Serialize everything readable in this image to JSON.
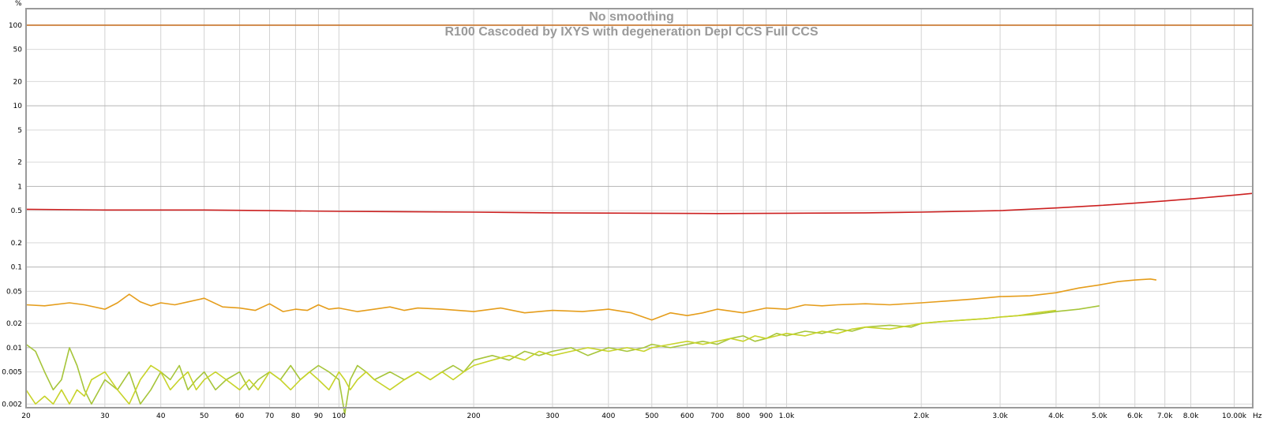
{
  "chart_data": {
    "type": "line",
    "title": "No smoothing",
    "subtitle": "R100 Cascoded by IXYS with degeneration Depl CCS Full CCS",
    "y_unit": "%",
    "x_unit": "Hz",
    "x_scale": "log",
    "y_scale": "log",
    "xlim": [
      20,
      11000
    ],
    "ylim": [
      0.0018,
      160
    ],
    "grid": true,
    "legend": "none",
    "x_ticks": [
      {
        "v": 20,
        "label": "20"
      },
      {
        "v": 30,
        "label": "30"
      },
      {
        "v": 40,
        "label": "40"
      },
      {
        "v": 50,
        "label": "50"
      },
      {
        "v": 60,
        "label": "60"
      },
      {
        "v": 70,
        "label": "70"
      },
      {
        "v": 80,
        "label": "80"
      },
      {
        "v": 90,
        "label": "90"
      },
      {
        "v": 100,
        "label": "100"
      },
      {
        "v": 200,
        "label": "200"
      },
      {
        "v": 300,
        "label": "300"
      },
      {
        "v": 400,
        "label": "400"
      },
      {
        "v": 500,
        "label": "500"
      },
      {
        "v": 600,
        "label": "600"
      },
      {
        "v": 700,
        "label": "700"
      },
      {
        "v": 800,
        "label": "800"
      },
      {
        "v": 900,
        "label": "900"
      },
      {
        "v": 1000,
        "label": "1.0k"
      },
      {
        "v": 2000,
        "label": "2.0k"
      },
      {
        "v": 3000,
        "label": "3.0k"
      },
      {
        "v": 4000,
        "label": "4.0k"
      },
      {
        "v": 5000,
        "label": "5.0k"
      },
      {
        "v": 6000,
        "label": "6.0k"
      },
      {
        "v": 7000,
        "label": "7.0k"
      },
      {
        "v": 8000,
        "label": "8.0k"
      },
      {
        "v": 10000,
        "label": "10.00k"
      }
    ],
    "y_ticks": [
      {
        "v": 100,
        "label": "100"
      },
      {
        "v": 50,
        "label": "50"
      },
      {
        "v": 20,
        "label": "20"
      },
      {
        "v": 10,
        "label": "10"
      },
      {
        "v": 5,
        "label": "5"
      },
      {
        "v": 2,
        "label": "2"
      },
      {
        "v": 1,
        "label": "1"
      },
      {
        "v": 0.5,
        "label": "0.5"
      },
      {
        "v": 0.2,
        "label": "0.2"
      },
      {
        "v": 0.1,
        "label": "0.1"
      },
      {
        "v": 0.05,
        "label": "0.05"
      },
      {
        "v": 0.02,
        "label": "0.02"
      },
      {
        "v": 0.01,
        "label": "0.01"
      },
      {
        "v": 0.005,
        "label": "0.005"
      },
      {
        "v": 0.002,
        "label": "0.002"
      }
    ],
    "series": [
      {
        "color": "#c8742a",
        "x": [
          20,
          11000
        ],
        "y": [
          100,
          100
        ]
      },
      {
        "color": "#cc2020",
        "x": [
          20,
          30,
          50,
          70,
          100,
          200,
          300,
          500,
          700,
          1000,
          1500,
          2000,
          3000,
          4000,
          5000,
          6000,
          7000,
          8000,
          9000,
          10000,
          11000
        ],
        "y": [
          0.52,
          0.51,
          0.51,
          0.5,
          0.49,
          0.48,
          0.47,
          0.465,
          0.46,
          0.465,
          0.47,
          0.48,
          0.5,
          0.54,
          0.58,
          0.62,
          0.66,
          0.7,
          0.74,
          0.78,
          0.82
        ]
      },
      {
        "color": "#e59d1b",
        "x": [
          20,
          22,
          25,
          27,
          30,
          32,
          34,
          36,
          38,
          40,
          43,
          46,
          50,
          55,
          60,
          65,
          70,
          75,
          80,
          85,
          90,
          95,
          100,
          110,
          120,
          130,
          140,
          150,
          170,
          200,
          230,
          260,
          300,
          350,
          400,
          450,
          500,
          550,
          600,
          650,
          700,
          800,
          900,
          1000,
          1100,
          1200,
          1300,
          1500,
          1700,
          2000,
          2300,
          2600,
          3000,
          3500,
          4000,
          4500,
          5000,
          5500,
          6000,
          6500,
          6700
        ],
        "y": [
          0.034,
          0.033,
          0.036,
          0.034,
          0.03,
          0.036,
          0.046,
          0.037,
          0.033,
          0.036,
          0.034,
          0.037,
          0.041,
          0.032,
          0.031,
          0.029,
          0.035,
          0.028,
          0.03,
          0.029,
          0.034,
          0.03,
          0.031,
          0.028,
          0.03,
          0.032,
          0.029,
          0.031,
          0.03,
          0.028,
          0.031,
          0.027,
          0.029,
          0.028,
          0.03,
          0.027,
          0.022,
          0.027,
          0.025,
          0.027,
          0.03,
          0.027,
          0.031,
          0.03,
          0.034,
          0.033,
          0.034,
          0.035,
          0.034,
          0.036,
          0.038,
          0.04,
          0.043,
          0.044,
          0.048,
          0.055,
          0.06,
          0.066,
          0.069,
          0.071,
          0.069
        ]
      },
      {
        "color": "#a6c53a",
        "x": [
          20,
          21,
          22,
          23,
          24,
          25,
          26,
          27,
          28,
          30,
          32,
          34,
          36,
          38,
          40,
          42,
          44,
          46,
          48,
          50,
          53,
          56,
          60,
          63,
          66,
          70,
          74,
          78,
          82,
          86,
          90,
          95,
          100,
          103,
          106,
          110,
          115,
          120,
          130,
          140,
          150,
          160,
          170,
          180,
          190,
          200,
          220,
          240,
          260,
          280,
          300,
          330,
          360,
          400,
          440,
          480,
          500,
          550,
          600,
          650,
          700,
          750,
          800,
          850,
          900,
          950,
          1000,
          1100,
          1200,
          1300,
          1400,
          1500,
          1700,
          1900,
          2000,
          2200,
          2500,
          2800,
          3000,
          3300,
          3600,
          4000,
          4500,
          5000
        ],
        "y": [
          0.011,
          0.009,
          0.005,
          0.003,
          0.004,
          0.01,
          0.006,
          0.003,
          0.002,
          0.004,
          0.003,
          0.005,
          0.002,
          0.003,
          0.005,
          0.004,
          0.006,
          0.003,
          0.004,
          0.005,
          0.003,
          0.004,
          0.005,
          0.003,
          0.004,
          0.005,
          0.004,
          0.006,
          0.004,
          0.005,
          0.006,
          0.005,
          0.004,
          0.0015,
          0.004,
          0.006,
          0.005,
          0.004,
          0.005,
          0.004,
          0.005,
          0.004,
          0.005,
          0.006,
          0.005,
          0.007,
          0.008,
          0.007,
          0.009,
          0.008,
          0.009,
          0.01,
          0.008,
          0.01,
          0.009,
          0.01,
          0.011,
          0.01,
          0.011,
          0.012,
          0.011,
          0.013,
          0.014,
          0.012,
          0.013,
          0.015,
          0.014,
          0.016,
          0.015,
          0.017,
          0.016,
          0.018,
          0.019,
          0.018,
          0.02,
          0.021,
          0.022,
          0.023,
          0.024,
          0.025,
          0.026,
          0.028,
          0.03,
          0.033
        ]
      },
      {
        "color": "#c7d32a",
        "x": [
          20,
          21,
          22,
          23,
          24,
          25,
          26,
          27,
          28,
          30,
          32,
          34,
          36,
          38,
          40,
          42,
          44,
          46,
          48,
          50,
          53,
          56,
          60,
          63,
          66,
          70,
          74,
          78,
          82,
          86,
          90,
          95,
          100,
          103,
          106,
          110,
          115,
          120,
          130,
          140,
          150,
          160,
          170,
          180,
          190,
          200,
          220,
          240,
          260,
          280,
          300,
          330,
          360,
          400,
          440,
          480,
          500,
          550,
          600,
          650,
          700,
          750,
          800,
          850,
          900,
          950,
          1000,
          1100,
          1200,
          1300,
          1400,
          1500,
          1700,
          1900,
          2000,
          2200,
          2500,
          2800,
          3000,
          3300,
          3600,
          4000
        ],
        "y": [
          0.003,
          0.002,
          0.0025,
          0.002,
          0.003,
          0.002,
          0.003,
          0.0025,
          0.004,
          0.005,
          0.003,
          0.002,
          0.004,
          0.006,
          0.005,
          0.003,
          0.004,
          0.005,
          0.003,
          0.004,
          0.005,
          0.004,
          0.003,
          0.004,
          0.003,
          0.005,
          0.004,
          0.003,
          0.004,
          0.005,
          0.004,
          0.003,
          0.005,
          0.004,
          0.003,
          0.004,
          0.005,
          0.004,
          0.003,
          0.004,
          0.005,
          0.004,
          0.005,
          0.004,
          0.005,
          0.006,
          0.007,
          0.008,
          0.007,
          0.009,
          0.008,
          0.009,
          0.01,
          0.009,
          0.01,
          0.009,
          0.01,
          0.011,
          0.012,
          0.011,
          0.012,
          0.013,
          0.012,
          0.014,
          0.013,
          0.014,
          0.015,
          0.014,
          0.016,
          0.015,
          0.017,
          0.018,
          0.017,
          0.019,
          0.02,
          0.021,
          0.022,
          0.023,
          0.024,
          0.025,
          0.027,
          0.029
        ]
      }
    ]
  }
}
